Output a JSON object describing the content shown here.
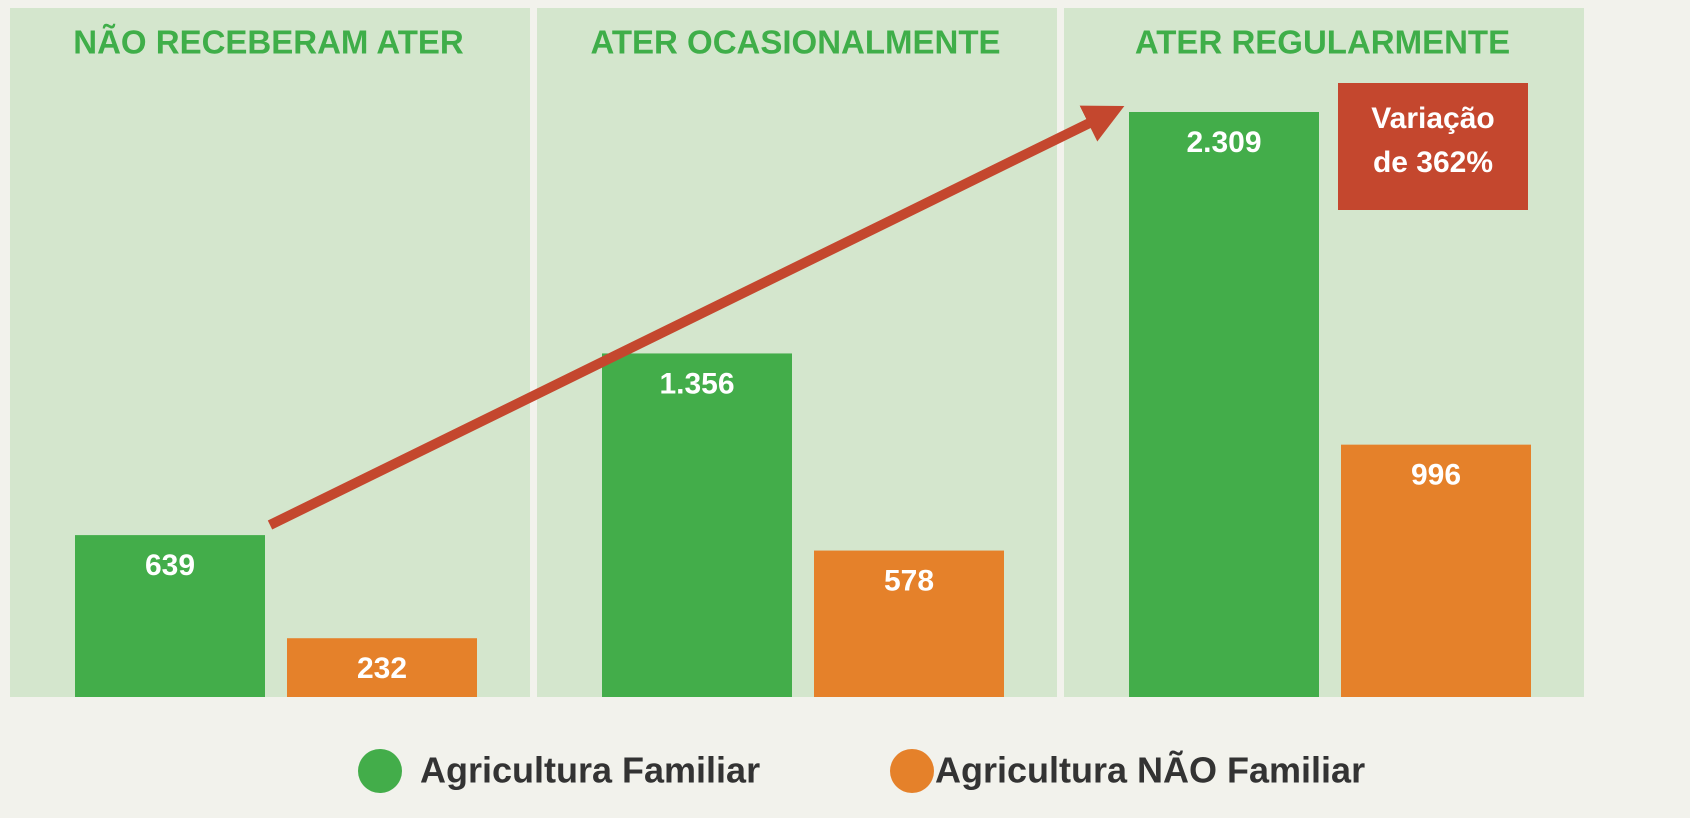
{
  "chart_data": {
    "type": "bar",
    "categories": [
      "NÃO RECEBERAM ATER",
      "ATER OCASIONALMENTE",
      "ATER REGULARMENTE"
    ],
    "series": [
      {
        "name": "Agricultura Familiar",
        "color": "#43ad4a",
        "values": [
          639,
          1356,
          2309
        ],
        "value_labels": [
          "639",
          "1.356",
          "2.309"
        ]
      },
      {
        "name": "Agricultura NÃO Familiar",
        "color": "#e5812a",
        "values": [
          232,
          578,
          996
        ],
        "value_labels": [
          "232",
          "578",
          "996"
        ]
      }
    ],
    "annotation": [
      "Variação",
      "de 362%"
    ],
    "annotation_color": "#c4472e",
    "panel_color": "#d4e6cd",
    "header_color": "#3fae49"
  }
}
